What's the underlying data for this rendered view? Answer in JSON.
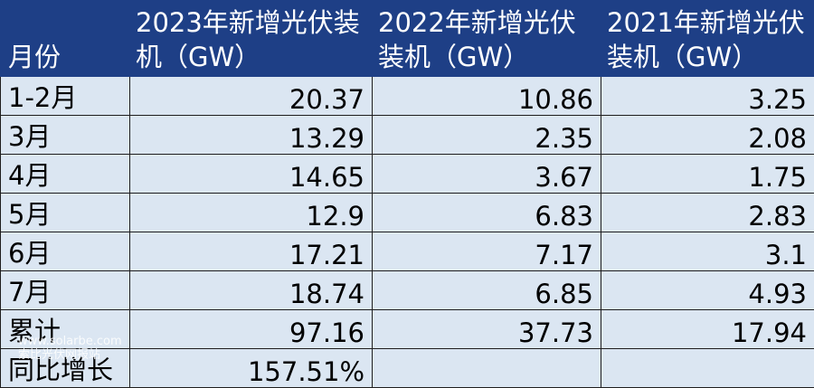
{
  "table": {
    "headers": [
      "月份",
      "2023年新增光伏装机（GW）",
      "2022年新增光伏装机（GW）",
      "2021年新增光伏装机（GW）"
    ],
    "rows": [
      {
        "month": "1-2月",
        "y2023": "20.37",
        "y2022": "10.86",
        "y2021": "3.25"
      },
      {
        "month": "3月",
        "y2023": "13.29",
        "y2022": "2.35",
        "y2021": "2.08"
      },
      {
        "month": "4月",
        "y2023": "14.65",
        "y2022": "3.67",
        "y2021": "1.75"
      },
      {
        "month": "5月",
        "y2023": "12.9",
        "y2022": "6.83",
        "y2021": "2.83"
      },
      {
        "month": "6月",
        "y2023": "17.21",
        "y2022": "7.17",
        "y2021": "3.1"
      },
      {
        "month": "7月",
        "y2023": "18.74",
        "y2022": "6.85",
        "y2021": "4.93"
      },
      {
        "month": "累计",
        "y2023": "97.16",
        "y2022": "37.73",
        "y2021": "17.94"
      },
      {
        "month": "同比增长",
        "y2023": "157.51%",
        "y2022": "",
        "y2021": ""
      }
    ]
  },
  "watermark": {
    "line1": "www.solarbe.com",
    "line2": "索比光伏网报站"
  },
  "colors": {
    "header_bg": "#1e3f86",
    "cell_bg": "#dbe6f2",
    "border": "#1e1e1e"
  }
}
